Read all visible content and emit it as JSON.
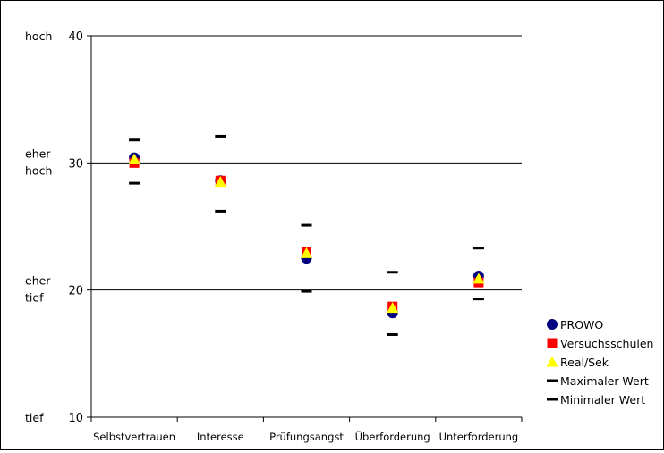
{
  "chart_data": {
    "type": "scatter",
    "title": "",
    "xlabel": "",
    "ylabel": "",
    "ylim": [
      10,
      40
    ],
    "yticks": [
      10,
      20,
      30,
      40
    ],
    "y_side_labels": [
      {
        "value": 40,
        "lines": [
          "hoch"
        ]
      },
      {
        "value": 30,
        "lines": [
          "eher",
          "hoch"
        ]
      },
      {
        "value": 20,
        "lines": [
          "eher",
          "tief"
        ]
      },
      {
        "value": 10,
        "lines": [
          "tief"
        ]
      }
    ],
    "grid": "horizontal",
    "legend_position": "right",
    "categories": [
      "Selbstvertrauen",
      "Interesse",
      "Prüfungsangst",
      "Überforderung",
      "Unterforderung"
    ],
    "series": [
      {
        "name": "PROWO",
        "marker": "circle",
        "color": "#000080",
        "values": [
          30.4,
          28.6,
          22.5,
          18.2,
          21.1
        ]
      },
      {
        "name": "Versuchsschulen",
        "marker": "square",
        "color": "#ff0000",
        "values": [
          30.0,
          28.6,
          23.0,
          18.7,
          20.6
        ]
      },
      {
        "name": "Real/Sek",
        "marker": "triangle",
        "color": "#ffff00",
        "values": [
          30.3,
          28.5,
          22.9,
          18.6,
          20.9
        ]
      },
      {
        "name": "Maximaler Wert",
        "marker": "dash",
        "color": "#000000",
        "values": [
          31.8,
          32.1,
          25.1,
          21.4,
          23.3
        ]
      },
      {
        "name": "Minimaler Wert",
        "marker": "dash",
        "color": "#000000",
        "values": [
          28.4,
          26.2,
          19.9,
          16.5,
          19.3
        ]
      }
    ]
  }
}
